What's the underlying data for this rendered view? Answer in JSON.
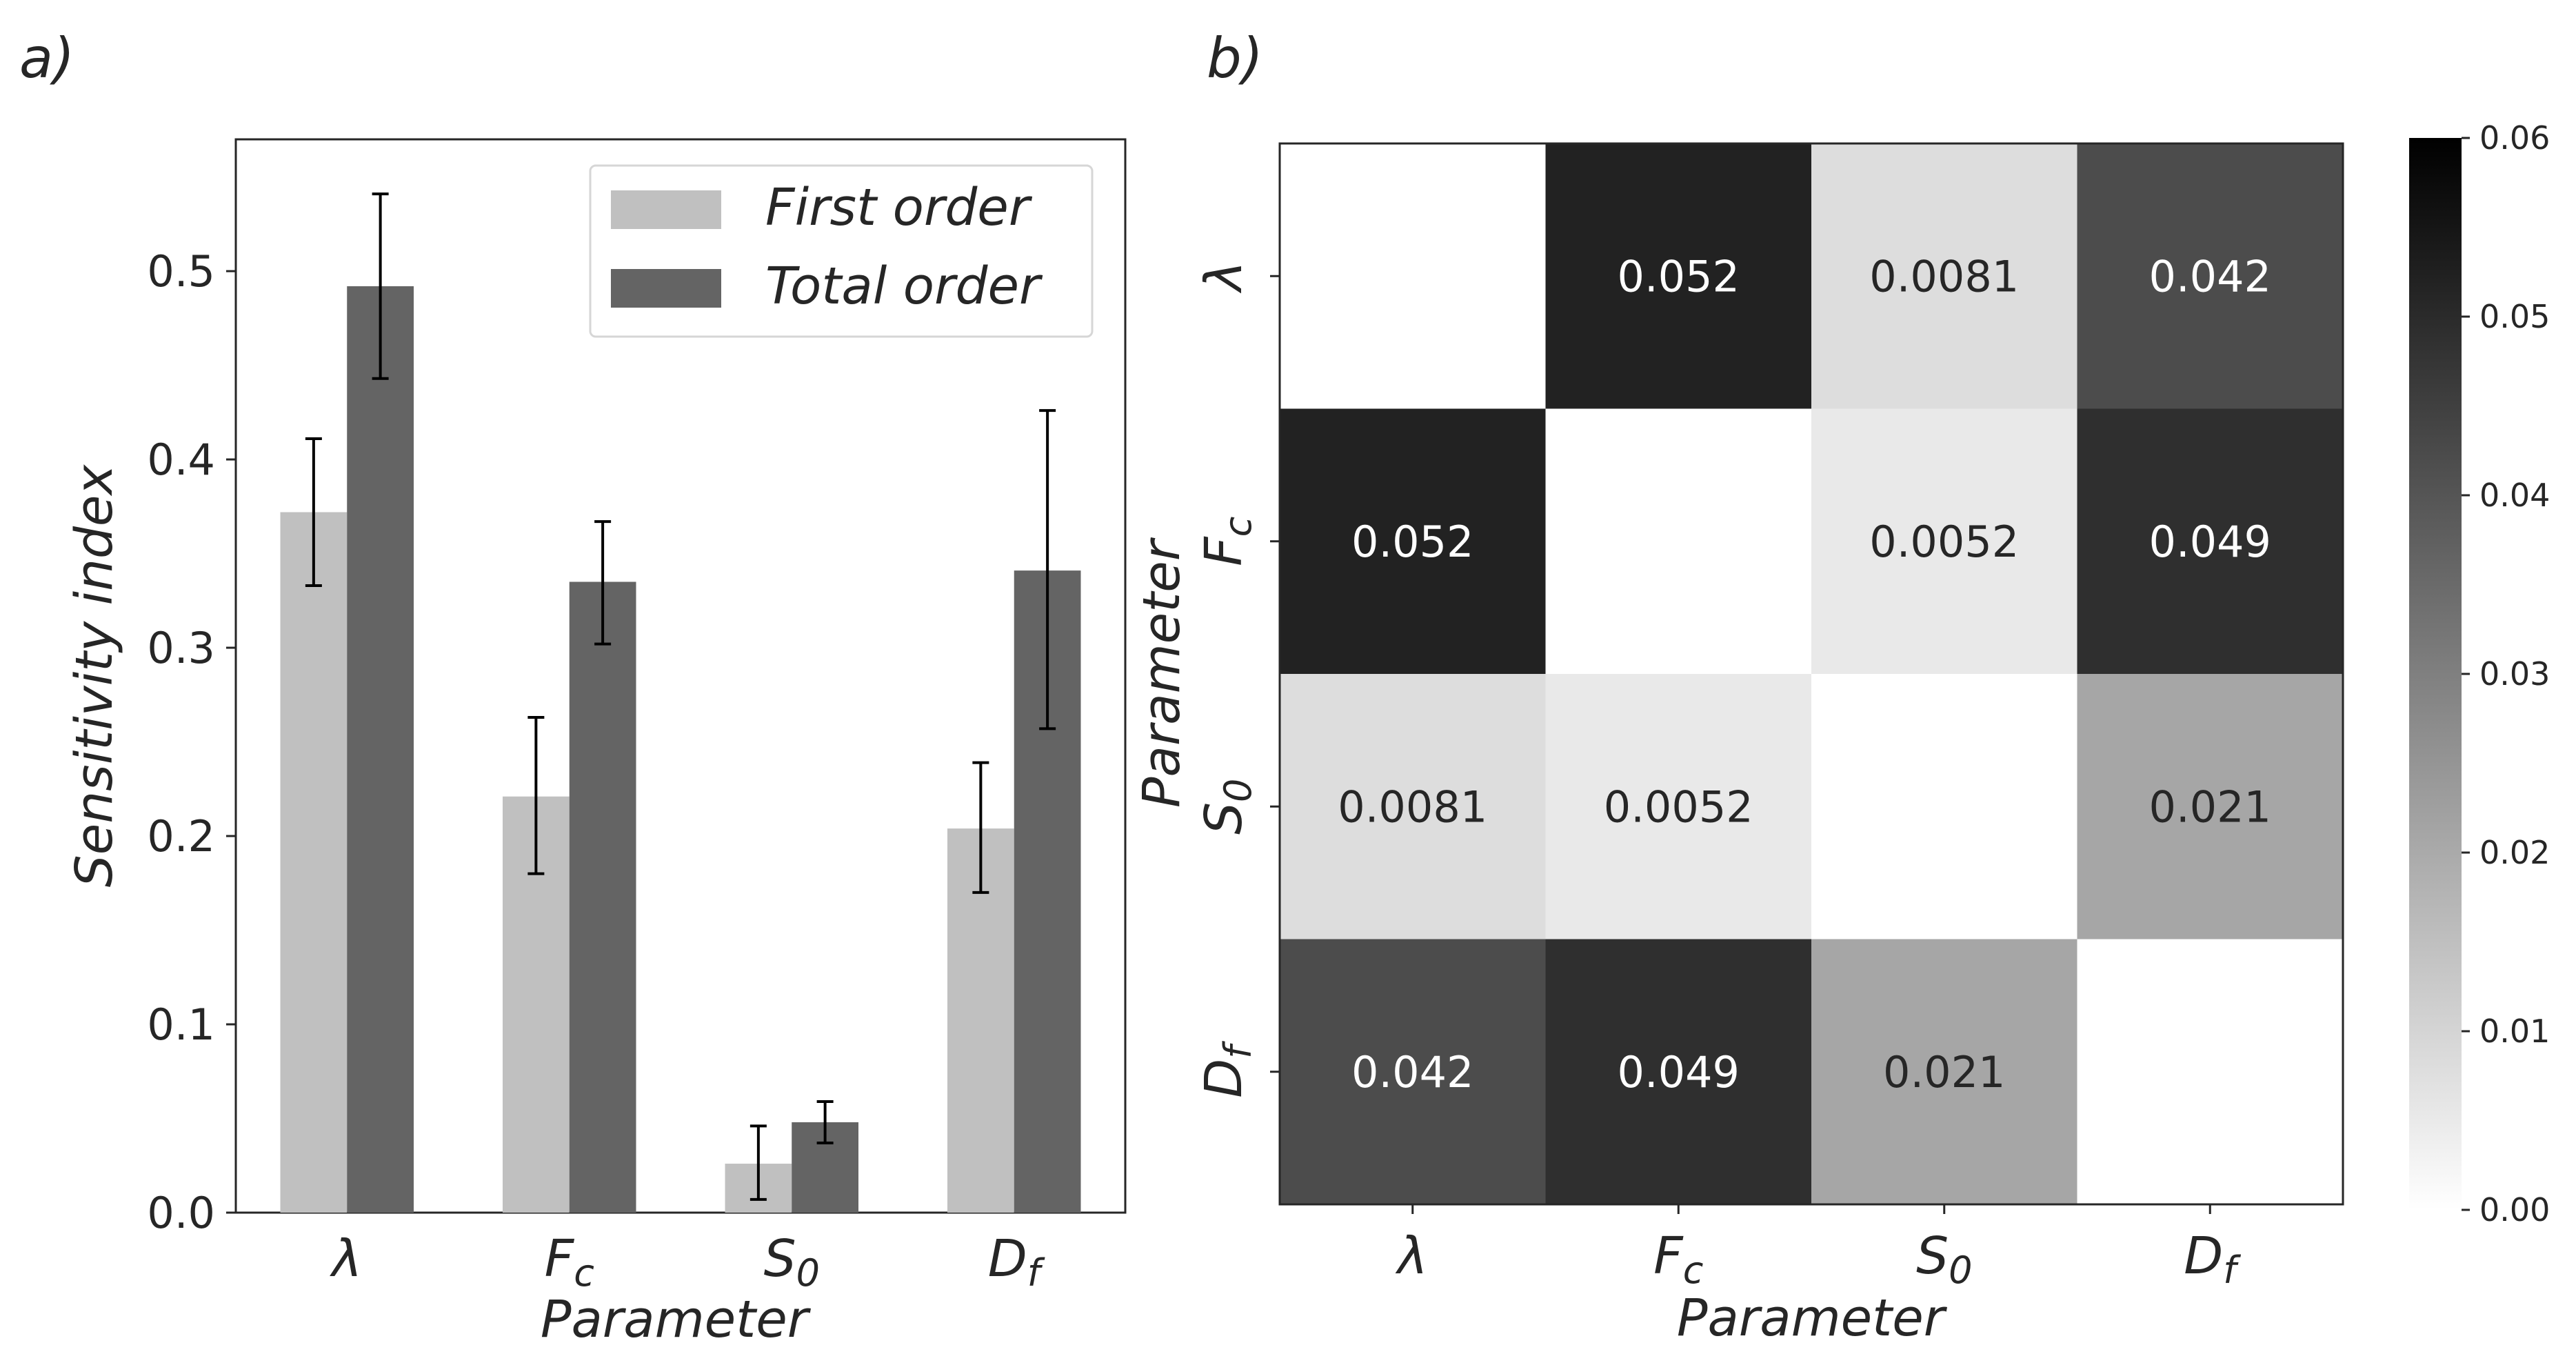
{
  "panels": {
    "a_label": "a)",
    "b_label": "b)"
  },
  "chart_data": [
    {
      "type": "bar",
      "ylabel": "Sensitivity index",
      "xlabel": "Parameter",
      "ylim": [
        0,
        0.57
      ],
      "yticks": [
        "0.0",
        "0.1",
        "0.2",
        "0.3",
        "0.4",
        "0.5"
      ],
      "ytick_values": [
        0,
        0.1,
        0.2,
        0.3,
        0.4,
        0.5
      ],
      "categories": [
        {
          "base": "λ",
          "sub": ""
        },
        {
          "base": "F",
          "sub": "c"
        },
        {
          "base": "S",
          "sub": "0"
        },
        {
          "base": "D",
          "sub": "f"
        }
      ],
      "legend_position": "top-right",
      "series": [
        {
          "name": "First order",
          "color": "#c0c0c0",
          "values": [
            0.372,
            0.221,
            0.026,
            0.204
          ],
          "err_low": [
            0.333,
            0.18,
            0.007,
            0.17
          ],
          "err_high": [
            0.411,
            0.263,
            0.046,
            0.239
          ]
        },
        {
          "name": "Total order",
          "color": "#646464",
          "values": [
            0.492,
            0.335,
            0.048,
            0.341
          ],
          "err_low": [
            0.443,
            0.302,
            0.037,
            0.257
          ],
          "err_high": [
            0.541,
            0.367,
            0.059,
            0.426
          ]
        }
      ]
    },
    {
      "type": "heatmap",
      "xlabel": "Parameter",
      "ylabel": "Parameter",
      "categories": [
        {
          "base": "λ",
          "sub": ""
        },
        {
          "base": "F",
          "sub": "c"
        },
        {
          "base": "S",
          "sub": "0"
        },
        {
          "base": "D",
          "sub": "f"
        }
      ],
      "values": [
        [
          null,
          0.052,
          0.0081,
          0.042
        ],
        [
          0.052,
          null,
          0.0052,
          0.049
        ],
        [
          0.0081,
          0.0052,
          null,
          0.021
        ],
        [
          0.042,
          0.049,
          0.021,
          null
        ]
      ],
      "labels": [
        [
          "",
          "0.052",
          "0.0081",
          "0.042"
        ],
        [
          "0.052",
          "",
          "0.0052",
          "0.049"
        ],
        [
          "0.0081",
          "0.0052",
          "",
          "0.021"
        ],
        [
          "0.042",
          "0.049",
          "0.021",
          ""
        ]
      ],
      "colorbar": {
        "vmin": 0.0,
        "vmax": 0.06,
        "ticks": [
          "0.00",
          "0.01",
          "0.02",
          "0.03",
          "0.04",
          "0.05",
          "0.06"
        ],
        "tick_values": [
          0,
          0.01,
          0.02,
          0.03,
          0.04,
          0.05,
          0.06
        ]
      }
    }
  ]
}
